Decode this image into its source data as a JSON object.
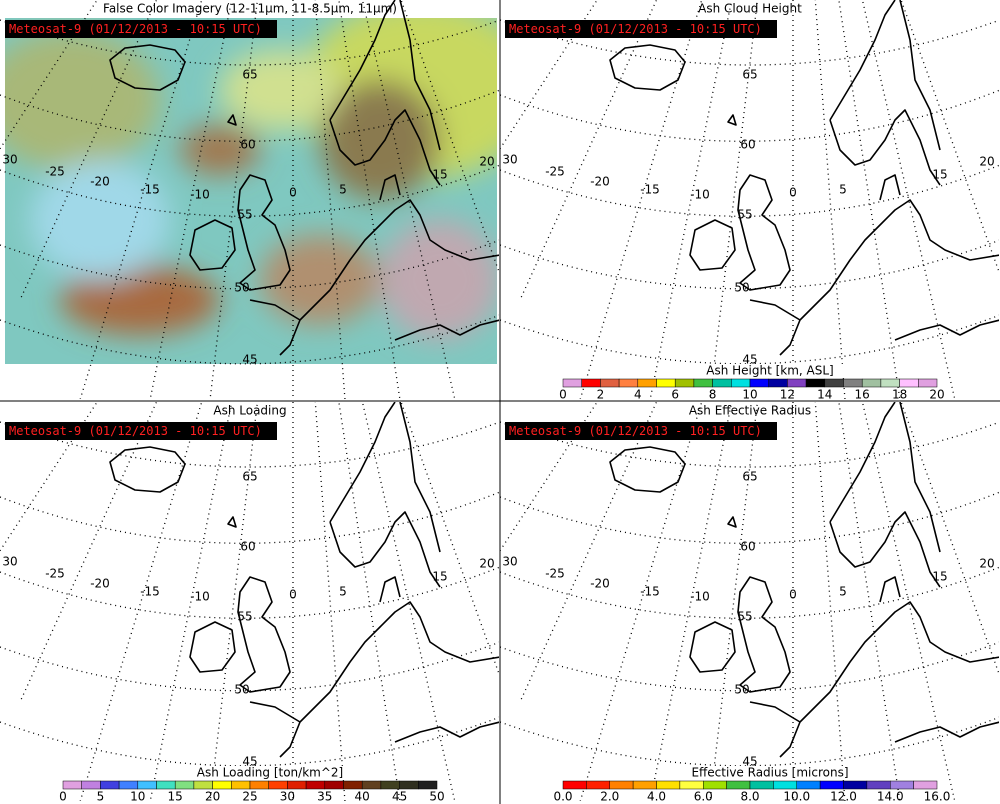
{
  "panels": [
    {
      "title": "False Color Imagery (12-11μm, 11-8.5μm, 11μm)",
      "timestamp": "Meteosat-9  (01/12/2013 - 10:15 UTC)",
      "lat_labels": [
        "65",
        "60",
        "55",
        "50",
        "45"
      ],
      "lon_labels": [
        "30",
        "-25",
        "-20",
        "-15",
        "-10",
        "0",
        "5",
        "15",
        "20"
      ]
    },
    {
      "title": "Ash Cloud Height",
      "timestamp": "Meteosat-9  (01/12/2013 - 10:15 UTC)",
      "lat_labels": [
        "65",
        "60",
        "55",
        "50",
        "45"
      ],
      "lon_labels": [
        "30",
        "-25",
        "-20",
        "-15",
        "-10",
        "0",
        "5",
        "15",
        "20"
      ],
      "colorbar": {
        "label": "Ash Height [km, ASL]",
        "ticks": [
          "0",
          "2",
          "4",
          "6",
          "8",
          "10",
          "12",
          "14",
          "16",
          "18",
          "20"
        ],
        "colors": [
          "#e0a0e0",
          "#ff0000",
          "#e06040",
          "#ff8040",
          "#ffa000",
          "#ffff00",
          "#a0c000",
          "#40c040",
          "#00c0a0",
          "#00e0e0",
          "#0000ff",
          "#0000a0",
          "#8040c0",
          "#000000",
          "#404040",
          "#808080",
          "#a0c0a0",
          "#c0e0c0",
          "#ffc0ff",
          "#e0a0e0"
        ]
      }
    },
    {
      "title": "Ash Loading",
      "timestamp": "Meteosat-9  (01/12/2013 - 10:15 UTC)",
      "lat_labels": [
        "65",
        "60",
        "55",
        "50",
        "45"
      ],
      "lon_labels": [
        "30",
        "-25",
        "-20",
        "-15",
        "-10",
        "0",
        "5",
        "15",
        "20"
      ],
      "colorbar": {
        "label": "Ash Loading [ton/km^2]",
        "ticks": [
          "0",
          "5",
          "10",
          "15",
          "20",
          "25",
          "30",
          "35",
          "40",
          "45",
          "50"
        ],
        "colors": [
          "#e0a0e0",
          "#c080e0",
          "#4040e0",
          "#4080ff",
          "#40c0ff",
          "#40e0c0",
          "#80e080",
          "#c0e040",
          "#ffff00",
          "#ffc000",
          "#ff8000",
          "#ff4000",
          "#e02000",
          "#c00000",
          "#a00000",
          "#802000",
          "#604020",
          "#404020",
          "#303020",
          "#202020"
        ]
      }
    },
    {
      "title": "Ash Effective Radius",
      "timestamp": "Meteosat-9  (01/12/2013 - 10:15 UTC)",
      "lat_labels": [
        "65",
        "60",
        "55",
        "50",
        "45"
      ],
      "lon_labels": [
        "30",
        "-25",
        "-20",
        "-15",
        "-10",
        "0",
        "5",
        "15",
        "20"
      ],
      "colorbar": {
        "label": "Effective Radius [microns]",
        "ticks": [
          "0.0",
          "2.0",
          "4.0",
          "6.0",
          "8.0",
          "10.0",
          "12.0",
          "14.0",
          "16.0"
        ],
        "colors": [
          "#ff0000",
          "#ff2000",
          "#ff8000",
          "#ffa000",
          "#ffe000",
          "#ffff40",
          "#a0e000",
          "#40c040",
          "#00c0a0",
          "#00e0e0",
          "#0080ff",
          "#0000ff",
          "#0000a0",
          "#6040c0",
          "#a080e0",
          "#e0a0e0"
        ]
      }
    }
  ]
}
